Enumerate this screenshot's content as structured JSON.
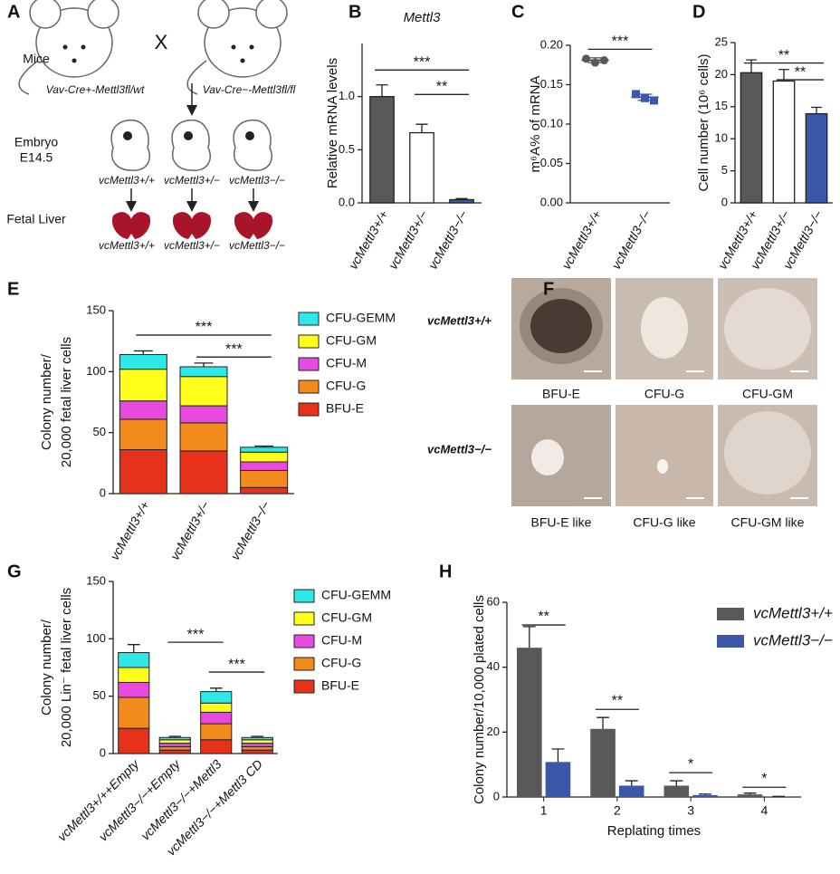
{
  "panel_letters": [
    "A",
    "B",
    "C",
    "D",
    "E",
    "F",
    "G",
    "H"
  ],
  "panel_a": {
    "row_labels": [
      "Mice",
      "Embryo",
      "E14.5",
      "Fetal Liver"
    ],
    "cross": "X",
    "parents": [
      "Vav-Cre+-Mettl3fl/wt",
      "Vav-Cre−-Mettl3fl/fl"
    ],
    "embryo_genotypes": [
      "vcMettl3+/+",
      "vcMettl3+/−",
      "vcMettl3−/−"
    ],
    "liver_genotypes": [
      "vcMettl3+/+",
      "vcMettl3+/−",
      "vcMettl3−/−"
    ]
  },
  "panel_f": {
    "row_labels": [
      "vcMettl3+/+",
      "vcMettl3−/−"
    ],
    "captions": [
      [
        "BFU-E",
        "CFU-G",
        "CFU-GM"
      ],
      [
        "BFU-E like",
        "CFU-G like",
        "CFU-GM like"
      ]
    ]
  },
  "chart_data": [
    {
      "type": "bar",
      "title": "Mettl3",
      "ylabel": [
        "Relative mRNA levels"
      ],
      "categories": [
        "vcMettl3+/+",
        "vcMettl3+/−",
        "vcMettl3−/−"
      ],
      "values": [
        1.0,
        0.66,
        0.03
      ],
      "errors": [
        0.11,
        0.08,
        0.01
      ],
      "colors": [
        "#595959",
        "#ffffff",
        "#3b57a8"
      ],
      "ylim": [
        0,
        1.5
      ],
      "yticks": [
        {
          "value": 0,
          "label": "0.0"
        },
        {
          "value": 0.5,
          "label": "0.5"
        },
        {
          "value": 1,
          "label": "1.0"
        }
      ],
      "significance": [
        "***",
        "**"
      ]
    },
    {
      "type": "dot",
      "ylabel": [
        "m⁶A% of mRNA"
      ],
      "categories": [
        "vcMettl3+/+",
        "vcMettl3−/−"
      ],
      "values": [
        [
          0.183,
          0.178,
          0.181
        ],
        [
          0.138,
          0.133,
          0.13
        ]
      ],
      "means": [
        0.181,
        0.134
      ],
      "errors": [
        0.003,
        0.004
      ],
      "colors": [
        "#595959",
        "#3b57a8"
      ],
      "ylim": [
        0,
        0.2
      ],
      "yticks": [
        {
          "value": 0,
          "label": "0.00"
        },
        {
          "value": 0.05,
          "label": "0.05"
        },
        {
          "value": 0.1,
          "label": "0.10"
        },
        {
          "value": 0.15,
          "label": "0.15"
        },
        {
          "value": 0.2,
          "label": "0.20"
        }
      ],
      "significance": [
        "***"
      ]
    },
    {
      "type": "bar",
      "ylabel": [
        "Cell number (10⁶ cells)"
      ],
      "categories": [
        "vcMettl3+/+",
        "vcMettl3+/−",
        "vcMettl3−/−"
      ],
      "values": [
        20.3,
        19.0,
        13.9
      ],
      "errors": [
        2.0,
        1.8,
        1.0
      ],
      "colors": [
        "#595959",
        "#ffffff",
        "#3b57a8"
      ],
      "ylim": [
        0,
        25
      ],
      "yticks": [
        0,
        5,
        10,
        15,
        20,
        25
      ],
      "significance": [
        "**",
        "**"
      ]
    },
    {
      "type": "stacked_bar",
      "ylabel": [
        "Colony number/",
        "20,000 fetal liver cells"
      ],
      "categories": [
        "vcMettl3+/+",
        "vcMettl3+/−",
        "vcMettl3−/−"
      ],
      "series": [
        {
          "name": "BFU-E",
          "color": "#e8311a",
          "values": [
            36,
            35,
            5
          ],
          "errors": [
            6,
            6,
            1
          ]
        },
        {
          "name": "CFU-G",
          "color": "#f28a1c",
          "values": [
            25,
            23,
            14
          ],
          "errors": [
            4,
            4,
            2
          ]
        },
        {
          "name": "CFU-M",
          "color": "#e84ae0",
          "values": [
            15,
            14,
            7
          ],
          "errors": [
            3,
            3,
            2
          ]
        },
        {
          "name": "CFU-GM",
          "color": "#ffff1a",
          "values": [
            26,
            24,
            8
          ],
          "errors": [
            3,
            3,
            2
          ]
        },
        {
          "name": "CFU-GEMM",
          "color": "#2ee8e8",
          "values": [
            12,
            8,
            4
          ],
          "errors": [
            3,
            3,
            1
          ]
        }
      ],
      "ylim": [
        0,
        150
      ],
      "yticks": [
        0,
        50,
        100,
        150
      ],
      "significance": [
        "***",
        "***"
      ]
    },
    {
      "type": "stacked_bar",
      "ylabel": [
        "Colony number/",
        "20,000 Lin⁻ fetal liver cells"
      ],
      "categories": [
        "vcMettl3+/++Empty",
        "vcMettl3−/−+Empty",
        "vcMettl3−/−+Mettl3",
        "vcMettl3−/−+Mettl3 CD"
      ],
      "series": [
        {
          "name": "BFU-E",
          "color": "#e8311a",
          "values": [
            22,
            3,
            12,
            3
          ],
          "errors": [
            3,
            1,
            3,
            1
          ]
        },
        {
          "name": "CFU-G",
          "color": "#f28a1c",
          "values": [
            27,
            3,
            14,
            3
          ],
          "errors": [
            3,
            1,
            3,
            1
          ]
        },
        {
          "name": "CFU-M",
          "color": "#e84ae0",
          "values": [
            13,
            3,
            10,
            3
          ],
          "errors": [
            3,
            1,
            3,
            1
          ]
        },
        {
          "name": "CFU-GM",
          "color": "#ffff1a",
          "values": [
            13,
            3,
            8,
            3
          ],
          "errors": [
            3,
            1,
            2,
            1
          ]
        },
        {
          "name": "CFU-GEMM",
          "color": "#2ee8e8",
          "values": [
            13,
            2,
            10,
            2
          ],
          "errors": [
            7,
            1,
            3,
            1
          ]
        }
      ],
      "ylim": [
        0,
        150
      ],
      "yticks": [
        0,
        50,
        100,
        150
      ],
      "significance": [
        "***",
        "***"
      ]
    },
    {
      "type": "grouped_bar",
      "ylabel": [
        "Colony number/10,000 plated cells"
      ],
      "xlabel": "Replating times",
      "categories": [
        "1",
        "2",
        "3",
        "4"
      ],
      "series": [
        {
          "name": "vcMettl3+/+",
          "color": "#595959",
          "values": [
            46,
            21,
            3.5,
            0.8
          ],
          "errors": [
            6.5,
            3.5,
            1.5,
            0.4
          ]
        },
        {
          "name": "vcMettl3−/−",
          "color": "#3b57a8",
          "values": [
            10.8,
            3.5,
            0.6,
            0.1
          ],
          "errors": [
            4,
            1.5,
            0.3,
            0.1
          ]
        }
      ],
      "ylim": [
        0,
        60
      ],
      "yticks": [
        0,
        20,
        40,
        60
      ],
      "significance": [
        "**",
        "**",
        "*",
        "*"
      ]
    }
  ]
}
